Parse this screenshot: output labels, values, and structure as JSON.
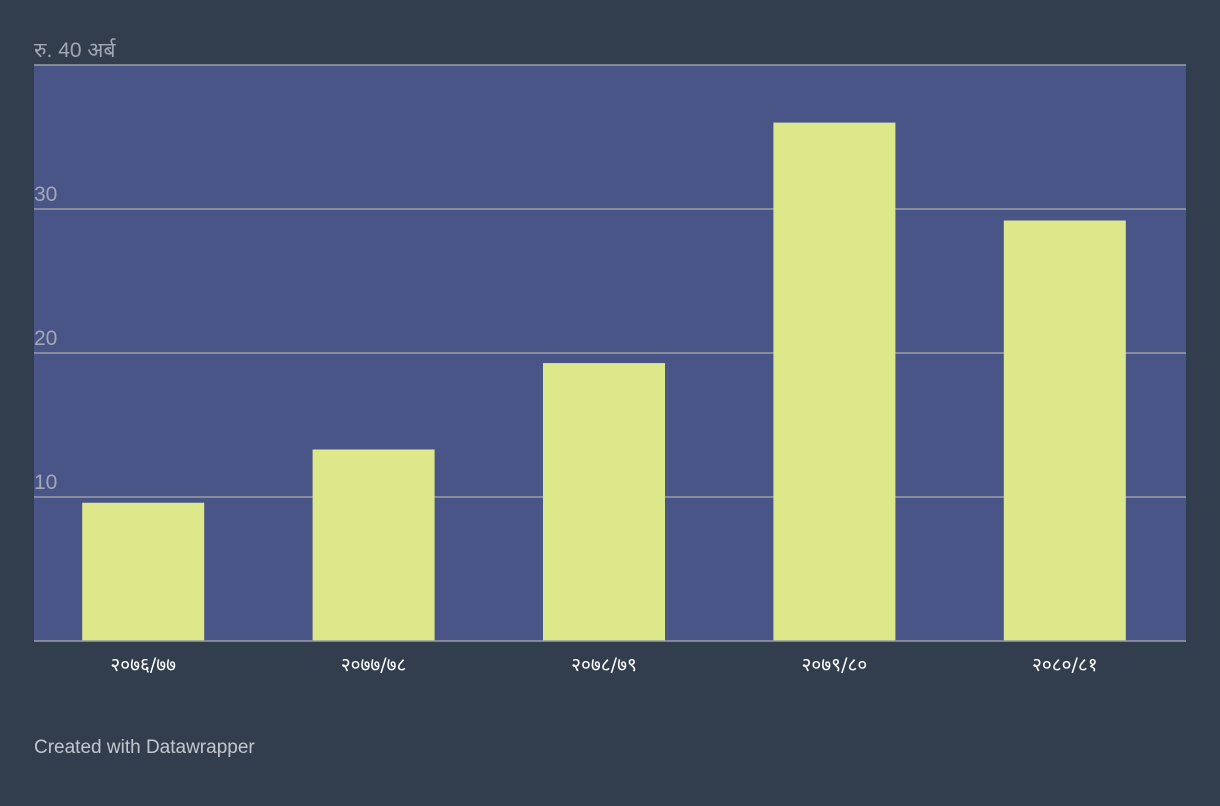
{
  "chart_data": {
    "type": "bar",
    "title": "",
    "xlabel": "",
    "ylabel": "",
    "y_unit_prefix": "रु.",
    "y_unit_suffix": "अर्ब",
    "categories": [
      "२०७६/७७",
      "२०७७/७८",
      "२०७८/७९",
      "२०७९/८०",
      "२०८०/८१"
    ],
    "values": [
      9.6,
      13.3,
      19.3,
      36.0,
      29.2
    ],
    "ylim": [
      0,
      40
    ],
    "yticks": [
      10,
      20,
      30,
      40
    ],
    "grid": true,
    "legend": "none",
    "colors": {
      "background": "#323d4d",
      "plot_background": "#485586",
      "bar": "#dce88a",
      "grid": "#9a9ea6"
    }
  },
  "footer": {
    "credit": "Created with Datawrapper"
  }
}
